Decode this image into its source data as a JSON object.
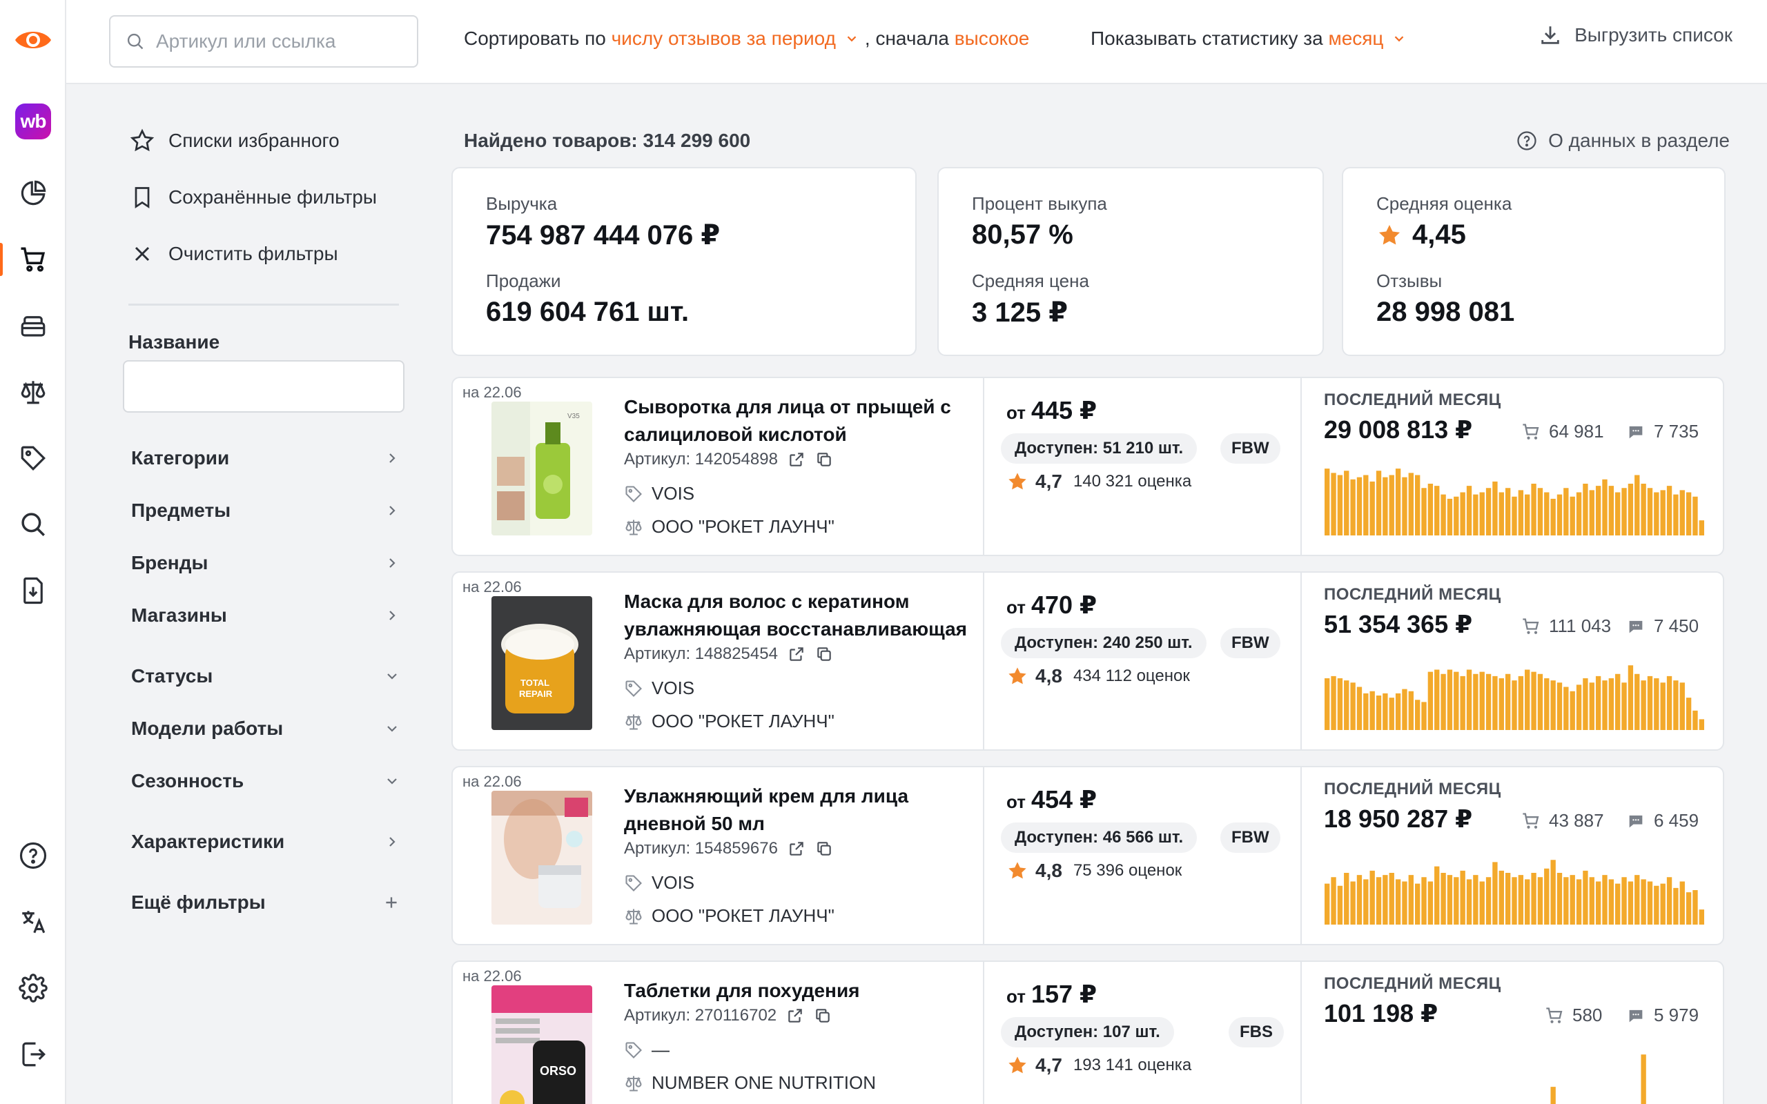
{
  "rail": {
    "items": [
      {
        "name": "logo-eye-icon",
        "active": false
      },
      {
        "name": "wb-marketplace-icon",
        "label": "wb",
        "active": false
      },
      {
        "name": "pie-chart-icon",
        "active": false
      },
      {
        "name": "cart-icon",
        "active": true
      },
      {
        "name": "boxes-icon",
        "active": false
      },
      {
        "name": "scales-icon",
        "active": false
      },
      {
        "name": "tag-icon",
        "active": false
      },
      {
        "name": "search-icon",
        "active": false
      },
      {
        "name": "download-doc-icon",
        "active": false
      },
      {
        "name": "help-circle-icon",
        "active": false
      },
      {
        "name": "translate-icon",
        "active": false
      },
      {
        "name": "settings-gear-icon",
        "active": false
      },
      {
        "name": "logout-icon",
        "active": false
      }
    ]
  },
  "topbar": {
    "search_placeholder": "Артикул или ссылка",
    "sort_prefix": "Сортировать по",
    "sort_field": "числу отзывов за период",
    "sort_mid": ", сначала",
    "sort_order": "высокое",
    "stats_prefix": "Показывать статистику за",
    "stats_period": "месяц",
    "export_label": "Выгрузить список"
  },
  "sidebar": {
    "favorites": "Списки избранного",
    "saved_filters": "Сохранённые фильтры",
    "clear_filters": "Очистить фильтры",
    "name_label": "Название",
    "name_value": "",
    "filters": [
      {
        "label": "Категории",
        "icon": "chevron-right"
      },
      {
        "label": "Предметы",
        "icon": "chevron-right"
      },
      {
        "label": "Бренды",
        "icon": "chevron-right"
      },
      {
        "label": "Магазины",
        "icon": "chevron-right"
      },
      {
        "label": "Статусы",
        "icon": "chevron-down"
      },
      {
        "label": "Модели работы",
        "icon": "chevron-down"
      },
      {
        "label": "Сезонность",
        "icon": "chevron-down"
      },
      {
        "label": "Характеристики",
        "icon": "chevron-right"
      },
      {
        "label": "Ещё фильтры",
        "icon": "plus"
      }
    ]
  },
  "summary": {
    "found": "Найдено товаров: 314 299 600",
    "about": "О данных в разделе",
    "revenue_label": "Выручка",
    "revenue_value": "754 987 444 076 ₽",
    "sales_label": "Продажи",
    "sales_value": "619 604 761 шт.",
    "buyout_label": "Процент выкупа",
    "buyout_value": "80,57 %",
    "avg_price_label": "Средняя цена",
    "avg_price_value": "3 125 ₽",
    "avg_rating_label": "Средняя оценка",
    "avg_rating_value": "4,45",
    "reviews_label": "Отзывы",
    "reviews_value": "28 998 081"
  },
  "products": [
    {
      "date": "на 22.06",
      "title": "Сыворотка для лица от прыщей с салициловой кислотой",
      "article": "Артикул: 142054898",
      "brand": "VOIS",
      "seller": "ООО \"РОКЕТ ЛАУНЧ\"",
      "price_prefix": "от",
      "price": "445 ₽",
      "available": "Доступен: 51 210 шт.",
      "model": "FBW",
      "rating": "4,7",
      "rating_count": "140 321 оценка",
      "period": "ПОСЛЕДНИЙ МЕСЯЦ",
      "revenue": "29 008 813 ₽",
      "orders": "64 981",
      "reviews": "7 735",
      "image_kind": "serum",
      "spark": [
        62,
        58,
        56,
        60,
        52,
        54,
        56,
        50,
        60,
        54,
        56,
        62,
        54,
        58,
        56,
        44,
        48,
        46,
        38,
        34,
        36,
        40,
        46,
        38,
        40,
        44,
        50,
        40,
        44,
        36,
        42,
        38,
        48,
        44,
        40,
        34,
        38,
        44,
        36,
        40,
        48,
        42,
        46,
        52,
        46,
        40,
        44,
        48,
        56,
        48,
        44,
        40,
        42,
        46,
        38,
        42,
        40,
        36,
        14
      ]
    },
    {
      "date": "на 22.06",
      "title": "Маска для волос с кератином увлажняющая восстанавливающая",
      "article": "Артикул: 148825454",
      "brand": "VOIS",
      "seller": "ООО \"РОКЕТ ЛАУНЧ\"",
      "price_prefix": "от",
      "price": "470 ₽",
      "available": "Доступен: 240 250 шт.",
      "model": "FBW",
      "rating": "4,8",
      "rating_count": "434 112 оценок",
      "period": "ПОСЛЕДНИЙ МЕСЯЦ",
      "revenue": "51 354 365 ₽",
      "orders": "111 043",
      "reviews": "7 450",
      "image_kind": "mask",
      "spark": [
        48,
        50,
        48,
        46,
        44,
        40,
        34,
        36,
        32,
        34,
        30,
        34,
        38,
        36,
        28,
        26,
        54,
        56,
        52,
        56,
        54,
        50,
        56,
        52,
        54,
        52,
        50,
        48,
        52,
        46,
        50,
        56,
        54,
        52,
        48,
        46,
        44,
        40,
        36,
        42,
        48,
        44,
        50,
        46,
        48,
        52,
        44,
        60,
        52,
        46,
        50,
        48,
        44,
        50,
        46,
        44,
        30,
        18,
        10
      ]
    },
    {
      "date": "на 22.06",
      "title": "Увлажняющий крем для лица дневной 50 мл",
      "article": "Артикул: 154859676",
      "brand": "VOIS",
      "seller": "ООО \"РОКЕТ ЛАУНЧ\"",
      "price_prefix": "от",
      "price": "454 ₽",
      "available": "Доступен: 46 566 шт.",
      "model": "FBW",
      "rating": "4,8",
      "rating_count": "75 396 оценок",
      "period": "ПОСЛЕДНИЙ МЕСЯЦ",
      "revenue": "18 950 287 ₽",
      "orders": "43 887",
      "reviews": "6 459",
      "image_kind": "cream",
      "spark": [
        38,
        44,
        36,
        48,
        40,
        46,
        42,
        50,
        44,
        46,
        48,
        42,
        40,
        46,
        38,
        44,
        40,
        54,
        48,
        46,
        44,
        50,
        42,
        46,
        40,
        44,
        58,
        50,
        48,
        44,
        46,
        42,
        48,
        44,
        52,
        60,
        48,
        44,
        46,
        42,
        50,
        44,
        40,
        46,
        42,
        38,
        44,
        40,
        46,
        42,
        40,
        36,
        38,
        44,
        34,
        40,
        30,
        32,
        14
      ]
    },
    {
      "date": "на 22.06",
      "title": "Таблетки для похудения",
      "article": "Артикул: 270116702",
      "brand": "—",
      "seller": "NUMBER ONE NUTRITION",
      "price_prefix": "от",
      "price": "157 ₽",
      "available": "Доступен: 107 шт.",
      "model": "FBS",
      "rating": "4,7",
      "rating_count": "193 141 оценка",
      "period": "ПОСЛЕДНИЙ МЕСЯЦ",
      "revenue": "101 198 ₽",
      "orders": "580",
      "reviews": "5 979",
      "image_kind": "pills",
      "spark": [
        0,
        0,
        0,
        0,
        0,
        0,
        0,
        0,
        0,
        0,
        0,
        0,
        0,
        0,
        0,
        0,
        0,
        0,
        0,
        0,
        0,
        0,
        0,
        0,
        0,
        0,
        0,
        0,
        0,
        0,
        0,
        0,
        0,
        0,
        0,
        30,
        0,
        0,
        0,
        0,
        0,
        0,
        0,
        0,
        0,
        0,
        0,
        0,
        0,
        60,
        0,
        0,
        8,
        0,
        0,
        0,
        0,
        10,
        0
      ]
    }
  ]
}
